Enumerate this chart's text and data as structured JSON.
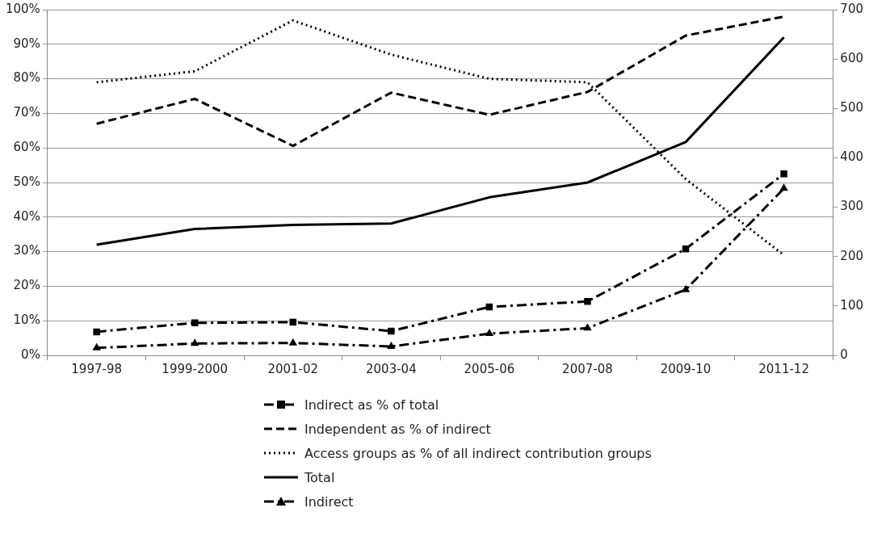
{
  "chart_data": {
    "type": "line",
    "categories": [
      "1997-98",
      "1999-2000",
      "2001-02",
      "2003-04",
      "2005-06",
      "2007-08",
      "2009-10",
      "2011-12"
    ],
    "series": [
      {
        "name": "Indirect as % of total",
        "color": "#000000",
        "line_style": "dashdot",
        "marker": "square",
        "values": [
          6.8,
          9.4,
          9.6,
          7.0,
          14.0,
          15.6,
          30.8,
          52.5
        ]
      },
      {
        "name": "Independent as % of indirect",
        "color": "#000000",
        "line_style": "dashed",
        "marker": "none",
        "values": [
          67,
          74.2,
          60.6,
          76,
          69.6,
          76.2,
          92.5,
          98
        ]
      },
      {
        "name": "Access groups as % of all indirect contribution groups",
        "color": "#000000",
        "line_style": "dotted",
        "marker": "none",
        "values": [
          79,
          82.2,
          96.9,
          87,
          80,
          79,
          51,
          29
        ]
      },
      {
        "name": "Total",
        "color": "#000000",
        "line_style": "solid",
        "marker": "none",
        "axis": "y2",
        "values": [
          224,
          256,
          264,
          267,
          320,
          350,
          432,
          644
        ]
      },
      {
        "name": "Indirect",
        "color": "#000000",
        "line_style": "dashdot",
        "marker": "triangle",
        "axis": "y2",
        "values": [
          15,
          24,
          25,
          18,
          44,
          55,
          133,
          338
        ]
      }
    ],
    "ylim": [
      0,
      100
    ],
    "yticks": [
      {
        "value": 0,
        "label": "0%"
      },
      {
        "value": 10,
        "label": "10%"
      },
      {
        "value": 20,
        "label": "20%"
      },
      {
        "value": 30,
        "label": "30%"
      },
      {
        "value": 40,
        "label": "40%"
      },
      {
        "value": 50,
        "label": "50%"
      },
      {
        "value": 60,
        "label": "60%"
      },
      {
        "value": 70,
        "label": "70%"
      },
      {
        "value": 80,
        "label": "80%"
      },
      {
        "value": 90,
        "label": "90%"
      },
      {
        "value": 100,
        "label": "100%"
      }
    ],
    "y2lim": [
      0,
      700
    ],
    "y2ticks": [
      0,
      100,
      200,
      300,
      400,
      500,
      600,
      700
    ],
    "grid": "y",
    "legend": "bottom"
  }
}
